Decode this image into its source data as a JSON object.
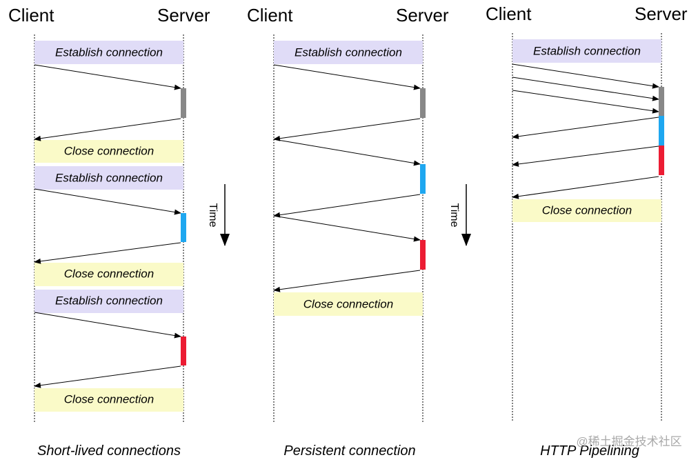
{
  "panels": [
    {
      "client": "Client",
      "server": "Server",
      "boxes": [
        "Establish connection",
        "Close connection",
        "Establish connection",
        "Close connection",
        "Establish connection",
        "Close connection"
      ],
      "caption": "Short-lived connections"
    },
    {
      "client": "Client",
      "server": "Server",
      "boxes": [
        "Establish connection",
        "Close connection"
      ],
      "caption": "Persistent connection"
    },
    {
      "client": "Client",
      "server": "Server",
      "boxes": [
        "Establish connection",
        "Close connection"
      ],
      "caption": "HTTP Pipelining"
    }
  ],
  "time_labels": [
    "Time",
    "Time"
  ],
  "watermark": "@稀土掘金技术社区"
}
